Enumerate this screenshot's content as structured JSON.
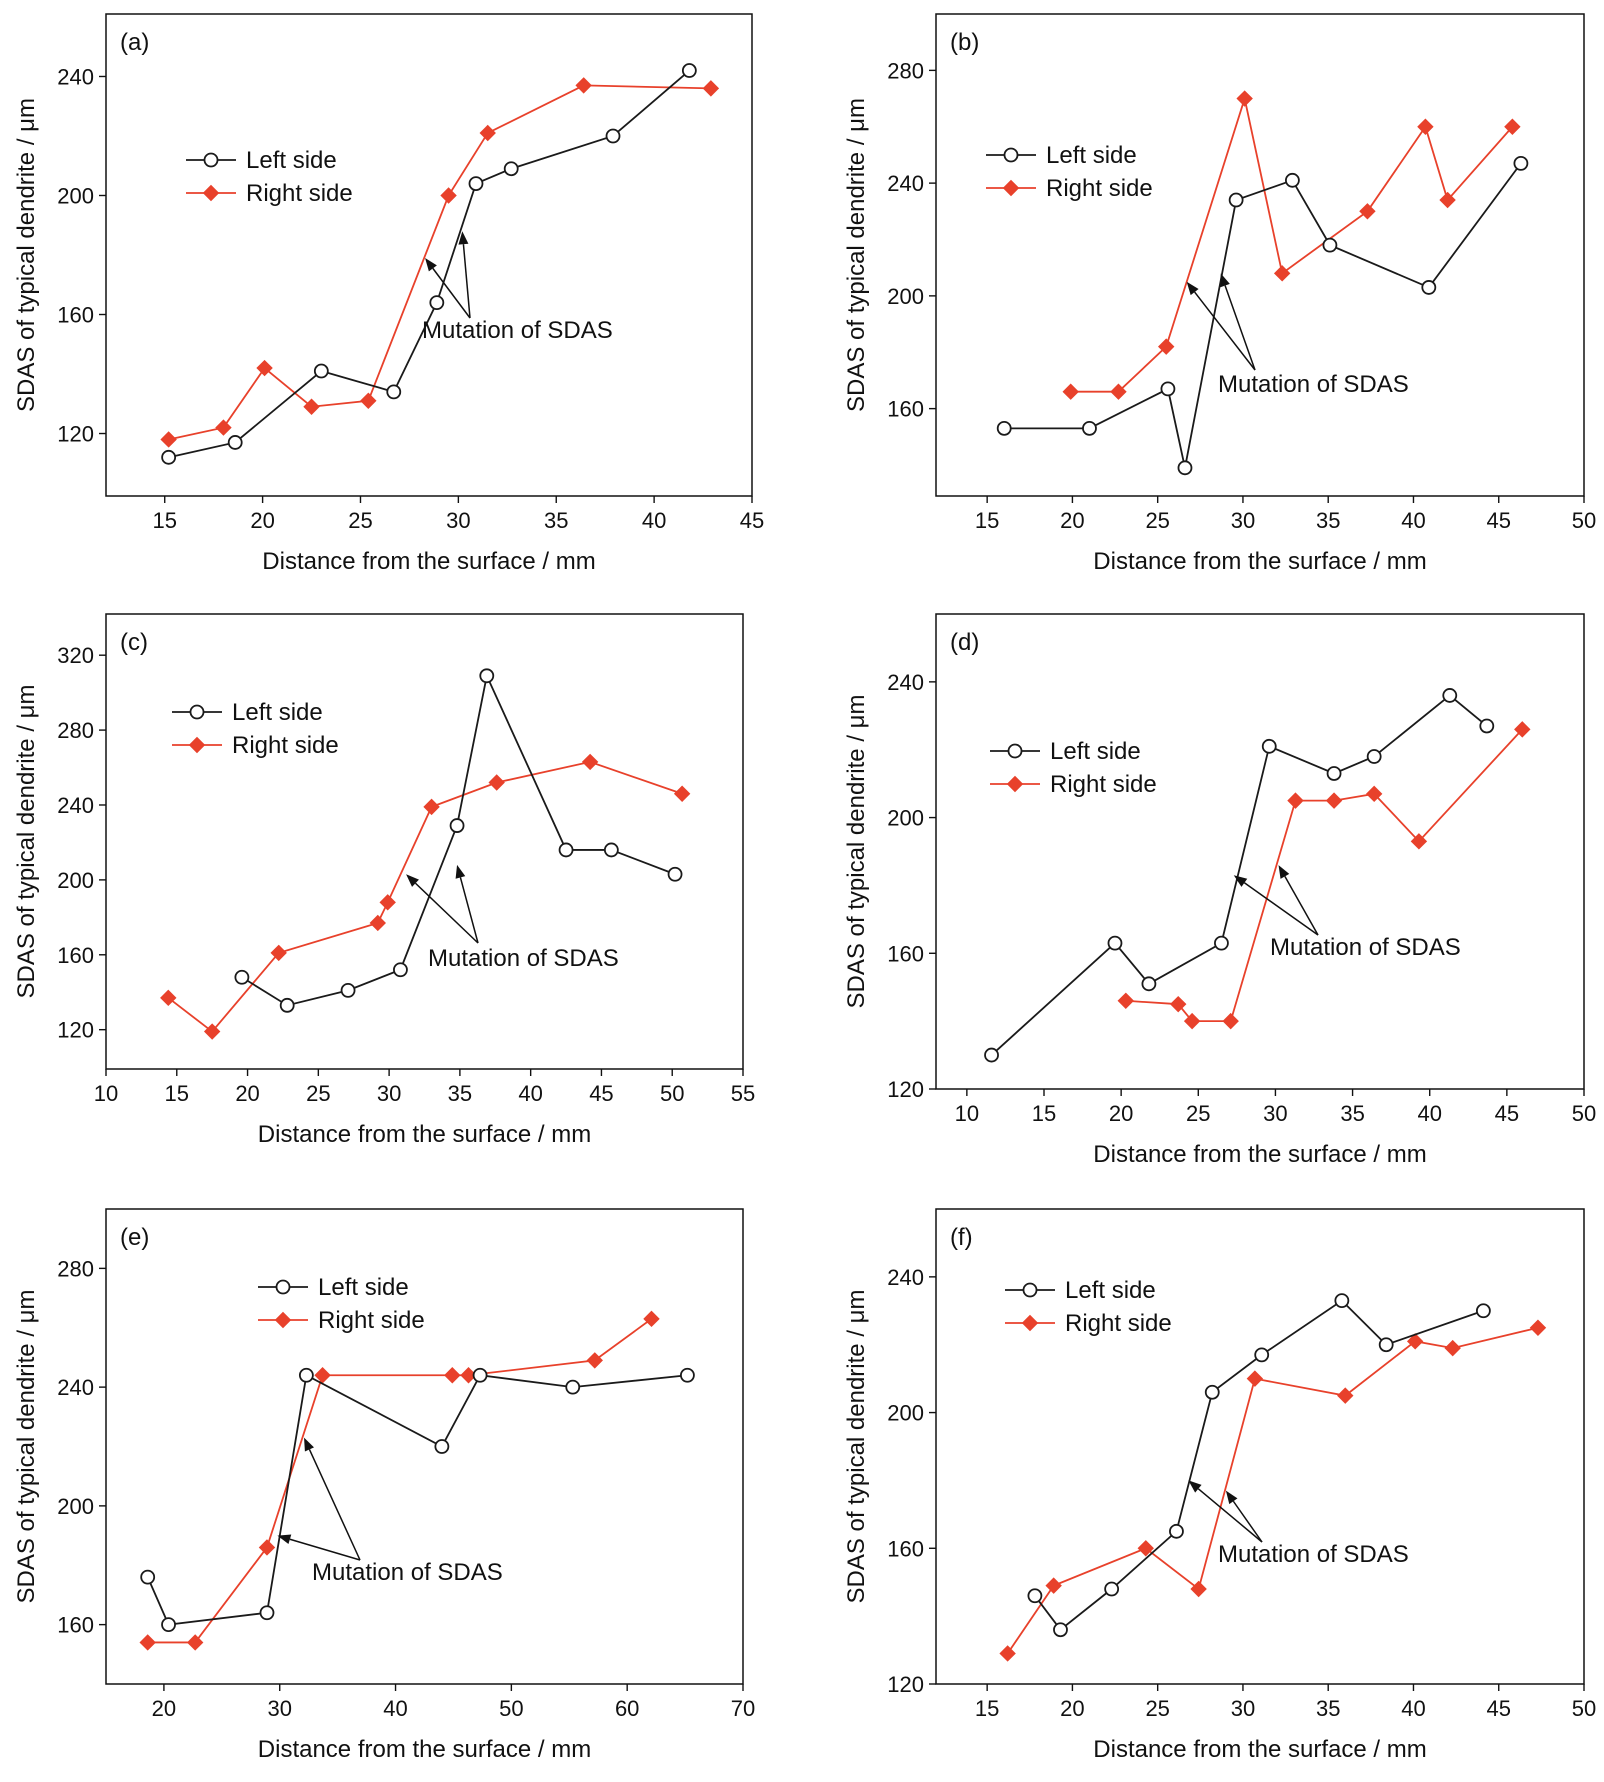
{
  "colors": {
    "left": "#1a1a1a",
    "right": "#e8412b",
    "axis": "#111111"
  },
  "legend_labels": {
    "left": "Left side",
    "right": "Right side"
  },
  "chart_data": [
    {
      "type": "line",
      "panel_label": "(a)",
      "xlabel": "Distance from the surface / mm",
      "ylabel": "SDAS of typical dendrite / μm",
      "xlim": [
        12,
        45
      ],
      "ylim": [
        99,
        261
      ],
      "xticks": [
        15,
        20,
        25,
        30,
        35,
        40,
        45
      ],
      "yticks": [
        120,
        160,
        200,
        240
      ],
      "annotation": "Mutation of SDAS",
      "series": [
        {
          "name": "Left side",
          "x": [
            15.2,
            18.6,
            23.0,
            26.7,
            28.9,
            30.9,
            32.7,
            37.9,
            41.8
          ],
          "y": [
            112,
            117,
            141,
            134,
            164,
            204,
            209,
            220,
            242
          ]
        },
        {
          "name": "Right side",
          "x": [
            15.2,
            18.0,
            20.1,
            22.5,
            25.4,
            29.5,
            31.5,
            36.4,
            42.9
          ],
          "y": [
            118,
            122,
            142,
            129,
            131,
            200,
            221,
            237,
            236
          ]
        }
      ],
      "arrows": [
        {
          "tip_x": 28.3,
          "tip_y": 179
        },
        {
          "tip_x": 30.2,
          "tip_y": 188
        }
      ]
    },
    {
      "type": "line",
      "panel_label": "(b)",
      "xlabel": "Distance from the surface / mm",
      "ylabel": "SDAS of typical dendrite / μm",
      "xlim": [
        12,
        50
      ],
      "ylim": [
        129,
        300
      ],
      "xticks": [
        15,
        20,
        25,
        30,
        35,
        40,
        45,
        50
      ],
      "yticks": [
        160,
        200,
        240,
        280
      ],
      "annotation": "Mutation of SDAS",
      "series": [
        {
          "name": "Left side",
          "x": [
            16.0,
            21.0,
            25.6,
            26.6,
            29.6,
            32.9,
            35.1,
            40.9,
            46.3
          ],
          "y": [
            153,
            153,
            167,
            139,
            234,
            241,
            218,
            203,
            247
          ]
        },
        {
          "name": "Right side",
          "x": [
            19.9,
            22.7,
            25.5,
            30.1,
            32.3,
            37.3,
            40.7,
            42.0,
            45.8
          ],
          "y": [
            166,
            166,
            182,
            270,
            208,
            230,
            260,
            234,
            260
          ]
        }
      ],
      "arrows": [
        {
          "tip_x": 26.7,
          "tip_y": 205
        },
        {
          "tip_x": 28.7,
          "tip_y": 208
        }
      ]
    },
    {
      "type": "line",
      "panel_label": "(c)",
      "xlabel": "Distance from the surface / mm",
      "ylabel": "SDAS of typical dendrite / μm",
      "xlim": [
        10,
        55
      ],
      "ylim": [
        99,
        342
      ],
      "xticks": [
        10,
        15,
        20,
        25,
        30,
        35,
        40,
        45,
        50,
        55
      ],
      "yticks": [
        120,
        160,
        200,
        240,
        280,
        320
      ],
      "annotation": "Mutation of SDAS",
      "series": [
        {
          "name": "Left side",
          "x": [
            19.6,
            22.8,
            27.1,
            30.8,
            34.8,
            36.9,
            42.5,
            45.7,
            50.2
          ],
          "y": [
            148,
            133,
            141,
            152,
            229,
            309,
            216,
            216,
            203
          ]
        },
        {
          "name": "Right side",
          "x": [
            14.4,
            17.5,
            22.2,
            29.2,
            29.9,
            33.0,
            37.6,
            44.2,
            50.7
          ],
          "y": [
            137,
            119,
            161,
            177,
            188,
            239,
            252,
            263,
            246
          ]
        }
      ],
      "arrows": [
        {
          "tip_x": 31.2,
          "tip_y": 203
        },
        {
          "tip_x": 34.8,
          "tip_y": 208
        }
      ]
    },
    {
      "type": "line",
      "panel_label": "(d)",
      "xlabel": "Distance from the surface / mm",
      "ylabel": "SDAS of typical dendrite / μm",
      "xlim": [
        8,
        50
      ],
      "ylim": [
        120,
        260
      ],
      "xticks": [
        10,
        15,
        20,
        25,
        30,
        35,
        40,
        45,
        50
      ],
      "yticks": [
        120,
        160,
        200,
        240
      ],
      "annotation": "Mutation of SDAS",
      "series": [
        {
          "name": "Left side",
          "x": [
            11.6,
            19.6,
            21.8,
            26.5,
            29.6,
            33.8,
            36.4,
            41.3,
            43.7
          ],
          "y": [
            130,
            163,
            151,
            163,
            221,
            213,
            218,
            236,
            227
          ]
        },
        {
          "name": "Right side",
          "x": [
            20.3,
            23.7,
            24.6,
            27.1,
            31.3,
            33.8,
            36.4,
            39.3,
            46.0
          ],
          "y": [
            146,
            145,
            140,
            140,
            205,
            205,
            207,
            193,
            226
          ]
        }
      ],
      "arrows": [
        {
          "tip_x": 27.3,
          "tip_y": 183
        },
        {
          "tip_x": 30.2,
          "tip_y": 186
        }
      ]
    },
    {
      "type": "line",
      "panel_label": "(e)",
      "xlabel": "Distance from the surface / mm",
      "ylabel": "SDAS of typical dendrite / μm",
      "xlim": [
        15,
        70
      ],
      "ylim": [
        140,
        300
      ],
      "xticks": [
        20,
        30,
        40,
        50,
        60,
        70
      ],
      "yticks": [
        160,
        200,
        240,
        280
      ],
      "annotation": "Mutation of SDAS",
      "series": [
        {
          "name": "Left side",
          "x": [
            18.6,
            20.4,
            28.9,
            32.3,
            44.0,
            47.3,
            55.3,
            65.2
          ],
          "y": [
            176,
            160,
            164,
            244,
            220,
            244,
            240,
            244
          ]
        },
        {
          "name": "Right side",
          "x": [
            18.6,
            22.7,
            28.9,
            33.7,
            44.9,
            46.3,
            57.2,
            62.1
          ],
          "y": [
            154,
            154,
            186,
            244,
            244,
            244,
            249,
            263
          ]
        }
      ],
      "arrows": [
        {
          "tip_x": 29.8,
          "tip_y": 190
        },
        {
          "tip_x": 32.1,
          "tip_y": 223
        }
      ]
    },
    {
      "type": "line",
      "panel_label": "(f)",
      "xlabel": "Distance from the surface / mm",
      "ylabel": "SDAS of typical dendrite / μm",
      "xlim": [
        12,
        50
      ],
      "ylim": [
        120,
        260
      ],
      "xticks": [
        15,
        20,
        25,
        30,
        35,
        40,
        45,
        50
      ],
      "yticks": [
        120,
        160,
        200,
        240
      ],
      "annotation": "Mutation of SDAS",
      "series": [
        {
          "name": "Left side",
          "x": [
            17.8,
            19.3,
            22.3,
            26.1,
            28.2,
            31.1,
            35.8,
            38.4,
            44.1
          ],
          "y": [
            146,
            136,
            148,
            165,
            206,
            217,
            233,
            220,
            230
          ]
        },
        {
          "name": "Right side",
          "x": [
            16.2,
            18.9,
            24.3,
            27.4,
            30.7,
            36.0,
            40.1,
            42.3,
            47.3
          ],
          "y": [
            129,
            149,
            160,
            148,
            210,
            205,
            221,
            219,
            225
          ]
        }
      ],
      "arrows": [
        {
          "tip_x": 26.8,
          "tip_y": 180
        },
        {
          "tip_x": 29.0,
          "tip_y": 177
        }
      ]
    }
  ]
}
